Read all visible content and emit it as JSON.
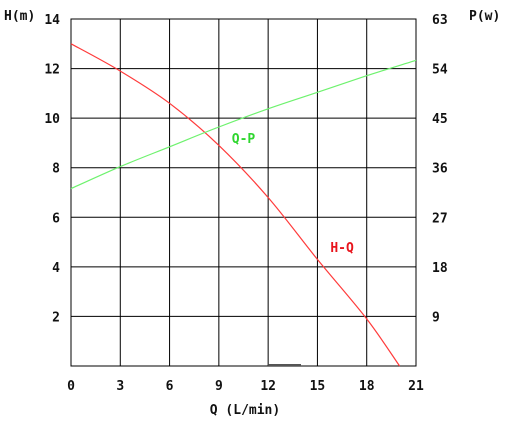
{
  "chart_data": {
    "type": "line",
    "title": "",
    "xlabel": "Q (L/min)",
    "ylabel_left": "H(m)",
    "ylabel_right": "P(w)",
    "xlim": [
      0,
      21
    ],
    "ylim_left": [
      0,
      14
    ],
    "ylim_right": [
      0,
      63
    ],
    "x_ticks": [
      0,
      3,
      6,
      9,
      12,
      15,
      18,
      21
    ],
    "y_ticks_left": [
      2,
      4,
      6,
      8,
      10,
      12,
      14
    ],
    "y_ticks_right": [
      9,
      18,
      27,
      36,
      45,
      54,
      63
    ],
    "grid": true,
    "series": [
      {
        "name": "H-Q",
        "axis": "left",
        "color": "#ff3b3b",
        "label_color": "#e8141c",
        "x": [
          0,
          3,
          6,
          9,
          12,
          15,
          18,
          20
        ],
        "y": [
          13.0,
          11.9,
          10.6,
          8.9,
          6.8,
          4.3,
          1.9,
          0.0
        ]
      },
      {
        "name": "Q-P",
        "axis": "right",
        "color": "#6ef26e",
        "label_color": "#2fd62f",
        "x": [
          0,
          3,
          6,
          9,
          12,
          15,
          18,
          21
        ],
        "y": [
          32.2,
          36.2,
          39.8,
          43.4,
          46.7,
          49.7,
          52.7,
          55.5
        ]
      }
    ],
    "annotations": [
      {
        "text": "Q-P",
        "series": "Q-P",
        "x": 10.5,
        "y": 40.5
      },
      {
        "text": "H-Q",
        "series": "H-Q",
        "x": 16.5,
        "y": 4.6
      }
    ]
  }
}
